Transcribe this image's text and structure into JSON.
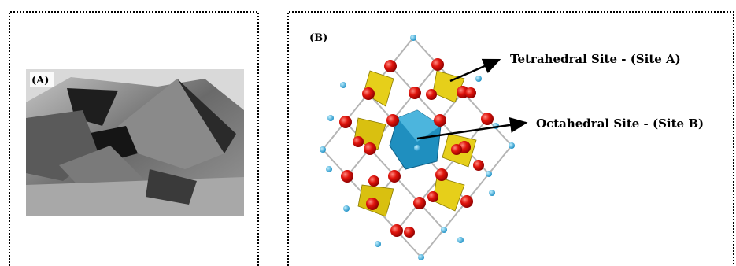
{
  "panel_a": {
    "label": "(A)"
  },
  "panel_b": {
    "label": "(B)",
    "annotations": [
      "Tetrahedral Site - (Site A)",
      "Octahedral Site - (Site B)"
    ]
  }
}
